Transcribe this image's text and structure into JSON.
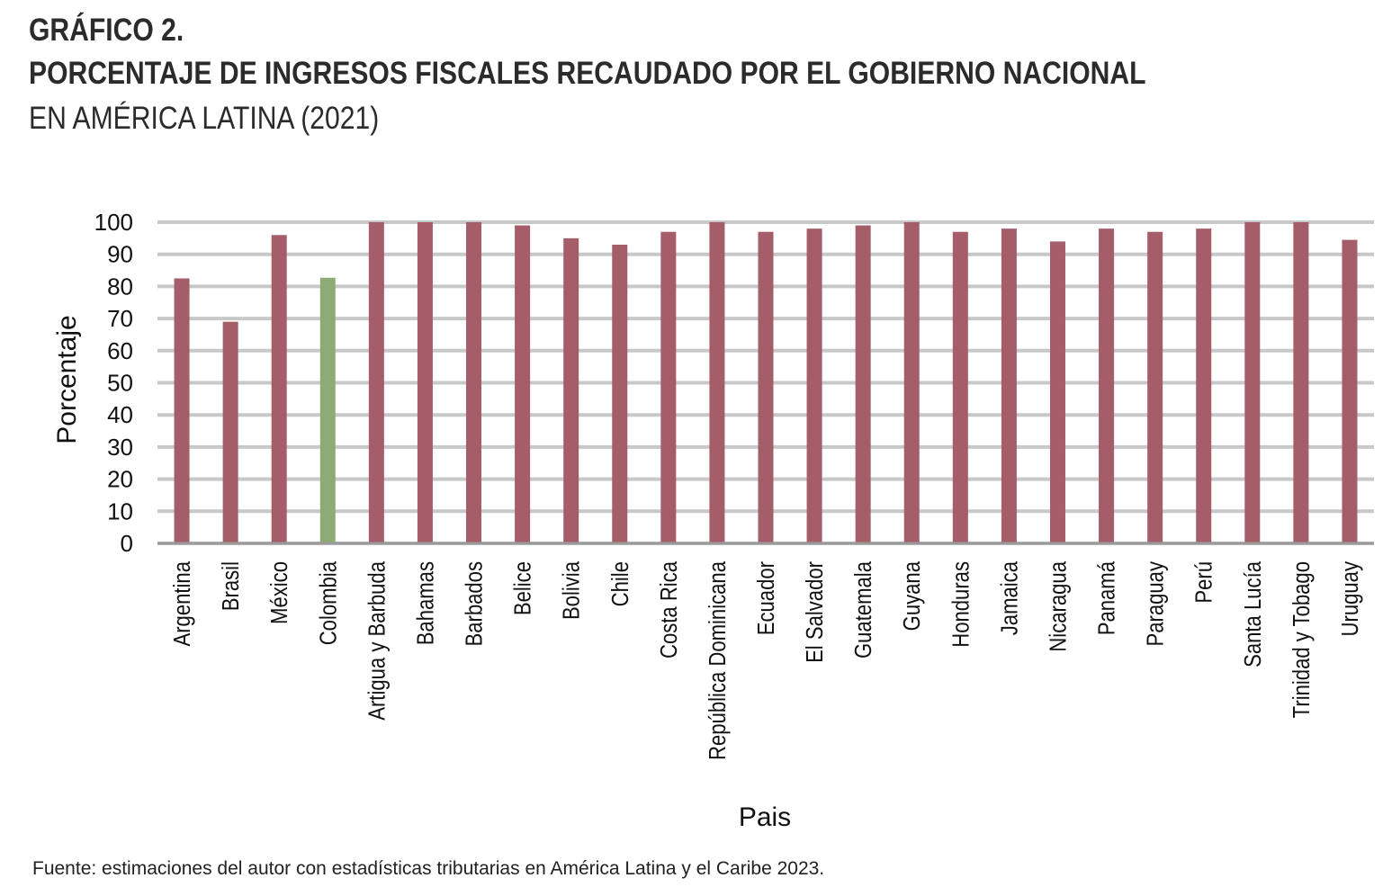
{
  "header": {
    "line1": "GRÁFICO 2.",
    "line2": "PORCENTAJE DE INGRESOS FISCALES RECAUDADO POR EL GOBIERNO NACIONAL",
    "line3": "EN AMÉRICA LATINA (2021)"
  },
  "source": "Fuente: estimaciones del autor con estadísticas tributarias en América Latina y el Caribe 2023.",
  "colors": {
    "bar": "#a55d6a",
    "highlight": "#8eab76",
    "grid": "#c8c8c8"
  },
  "chart_data": {
    "type": "bar",
    "xlabel": "Pais",
    "ylabel": "Porcentaje",
    "ylim": [
      0,
      100
    ],
    "yticks": [
      0,
      10,
      20,
      30,
      40,
      50,
      60,
      70,
      80,
      90,
      100
    ],
    "grid": true,
    "legend": "none",
    "highlight": "Colombia",
    "categories": [
      "Argentina",
      "Brasil",
      "México",
      "Colombia",
      "Artigua y Barbuda",
      "Bahamas",
      "Barbados",
      "Belice",
      "Bolivia",
      "Chile",
      "Costa Rica",
      "República Dominicana",
      "Ecuador",
      "El Salvador",
      "Guatemala",
      "Guyana",
      "Honduras",
      "Jamaica",
      "Nicaragua",
      "Panamá",
      "Paraguay",
      "Perú",
      "Santa Lucía",
      "Trinidad y Tobago",
      "Uruguay"
    ],
    "values": [
      82.5,
      69,
      96,
      82.7,
      100,
      100,
      100,
      99,
      95,
      93,
      97,
      100,
      97,
      98,
      99,
      100,
      97,
      98,
      94,
      98,
      97,
      98,
      100,
      100,
      94.5
    ]
  }
}
